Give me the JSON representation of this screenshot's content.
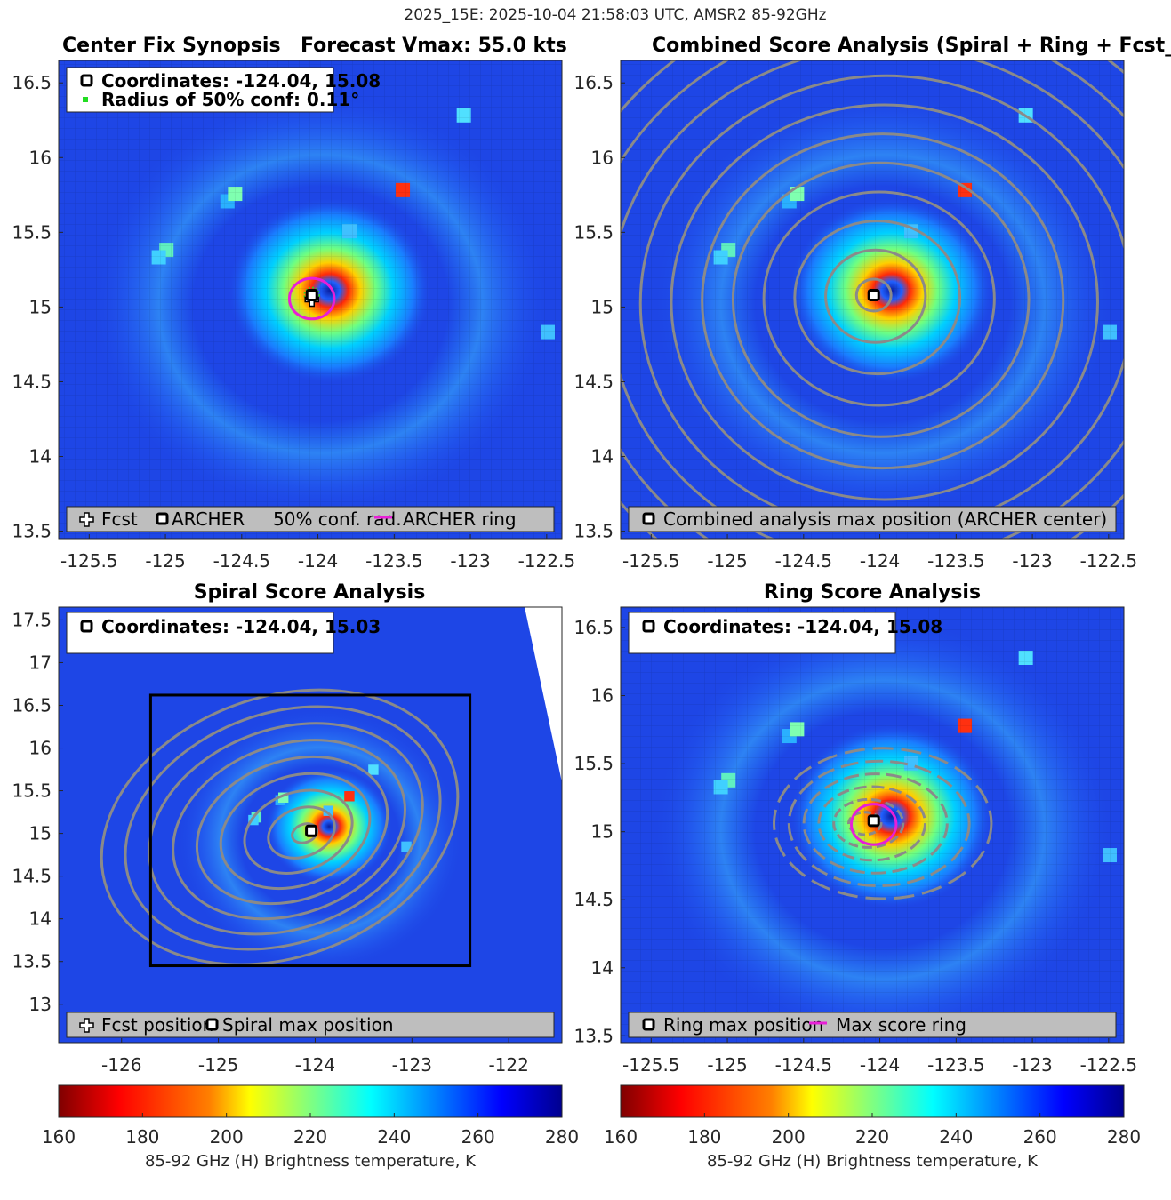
{
  "suptitle": "2025_15E: 2025-10-04 21:58:03 UTC, AMSR2 85-92GHz",
  "colors": {
    "magenta": "#e81fd7",
    "contour": "#8a8a8a",
    "legend_bg": "#bebebe",
    "ocean": "#1e46e6"
  },
  "panels": {
    "p1": {
      "title_left": "Center Fix Synopsis",
      "title_right": "Forecast Vmax: 55.0 kts",
      "info_line1": "Coordinates: -124.04, 15.08",
      "info_line2": "Radius of 50% conf: 0.11°",
      "legend": {
        "fcst": "Fcst",
        "archer": "ARCHER",
        "conf": "50% conf. rad.",
        "ring": "ARCHER ring"
      }
    },
    "p2": {
      "title": "Combined Score Analysis (Spiral + Ring + Fcst_Pe",
      "legend": {
        "max": "Combined analysis max position (ARCHER center)"
      }
    },
    "p3": {
      "title": "Spiral Score Analysis",
      "info_line1": "Coordinates: -124.04, 15.03",
      "legend": {
        "fcst": "Fcst position",
        "spiral": "Spiral max position"
      }
    },
    "p4": {
      "title": "Ring Score Analysis",
      "info_line1": "Coordinates: -124.04, 15.08",
      "legend": {
        "ring_max": "Ring max position",
        "max_ring": "Max score ring"
      }
    }
  },
  "colorbars": {
    "label": "85-92 GHz (H) Brightness temperature, K",
    "ticks": [
      "160",
      "180",
      "200",
      "220",
      "240",
      "260",
      "280"
    ]
  },
  "chart_data": [
    {
      "type": "heatmap",
      "panel": "p1",
      "title": "Center Fix Synopsis",
      "xlim": [
        -125.7,
        -122.4
      ],
      "ylim": [
        13.45,
        16.65
      ],
      "xticks": [
        -125.5,
        -125,
        -124.5,
        -124,
        -123.5,
        -123,
        -122.5
      ],
      "xtick_labels": [
        "-125.5",
        "-125",
        "-124.5",
        "-124",
        "-123.5",
        "-123",
        "-122.5"
      ],
      "yticks": [
        13.5,
        14,
        14.5,
        15,
        15.5,
        16,
        16.5
      ],
      "ytick_labels": [
        "13.5",
        "14",
        "14.5",
        "15",
        "15.5",
        "16",
        "16.5"
      ],
      "center": {
        "lon": -124.04,
        "lat": 15.08
      },
      "fcst": {
        "lon": -124.04,
        "lat": 15.05
      },
      "ring_radius_deg": 0.14,
      "conf_radius_deg": 0.11,
      "colorbar_range_K": [
        160,
        280
      ]
    },
    {
      "type": "heatmap",
      "panel": "p2",
      "title": "Combined Score Analysis (Spiral + Ring + Fcst_Pe",
      "xlim": [
        -125.7,
        -122.4
      ],
      "ylim": [
        13.45,
        16.65
      ],
      "xticks": [
        -125.5,
        -125,
        -124.5,
        -124,
        -123.5,
        -123,
        -122.5
      ],
      "xtick_labels": [
        "-125.5",
        "-125",
        "-124.5",
        "-124",
        "-123.5",
        "-123",
        "-122.5"
      ],
      "yticks": [
        13.5,
        14,
        14.5,
        15,
        15.5,
        16,
        16.5
      ],
      "ytick_labels": [
        "13.5",
        "14",
        "14.5",
        "15",
        "15.5",
        "16",
        "16.5"
      ],
      "center": {
        "lon": -124.04,
        "lat": 15.08
      },
      "contour_levels_count": 11
    },
    {
      "type": "heatmap",
      "panel": "p3",
      "title": "Spiral Score Analysis",
      "xlim": [
        -126.65,
        -121.45
      ],
      "ylim": [
        12.55,
        17.65
      ],
      "xticks": [
        -126,
        -125,
        -124,
        -123,
        -122
      ],
      "xtick_labels": [
        "-126",
        "-125",
        "-124",
        "-123",
        "-122"
      ],
      "yticks": [
        13,
        13.5,
        14,
        14.5,
        15,
        15.5,
        16,
        16.5,
        17,
        17.5
      ],
      "ytick_labels": [
        "13",
        "13.5",
        "14",
        "14.5",
        "15",
        "15.5",
        "16",
        "16.5",
        "17",
        "17.5"
      ],
      "center": {
        "lon": -124.04,
        "lat": 15.03
      },
      "search_box": {
        "lon": [
          -125.7,
          -122.4
        ],
        "lat": [
          13.45,
          16.62
        ]
      }
    },
    {
      "type": "heatmap",
      "panel": "p4",
      "title": "Ring Score Analysis",
      "xlim": [
        -125.7,
        -122.4
      ],
      "ylim": [
        13.45,
        16.65
      ],
      "xticks": [
        -125.5,
        -125,
        -124.5,
        -124,
        -123.5,
        -123,
        -122.5
      ],
      "xtick_labels": [
        "-125.5",
        "-125",
        "-124.5",
        "-124",
        "-123.5",
        "-123",
        "-122.5"
      ],
      "yticks": [
        13.5,
        14,
        14.5,
        15,
        15.5,
        16,
        16.5
      ],
      "ytick_labels": [
        "13.5",
        "14",
        "14.5",
        "15",
        "15.5",
        "16",
        "16.5"
      ],
      "center": {
        "lon": -124.04,
        "lat": 15.08
      },
      "ring_radius_deg": 0.14
    }
  ]
}
